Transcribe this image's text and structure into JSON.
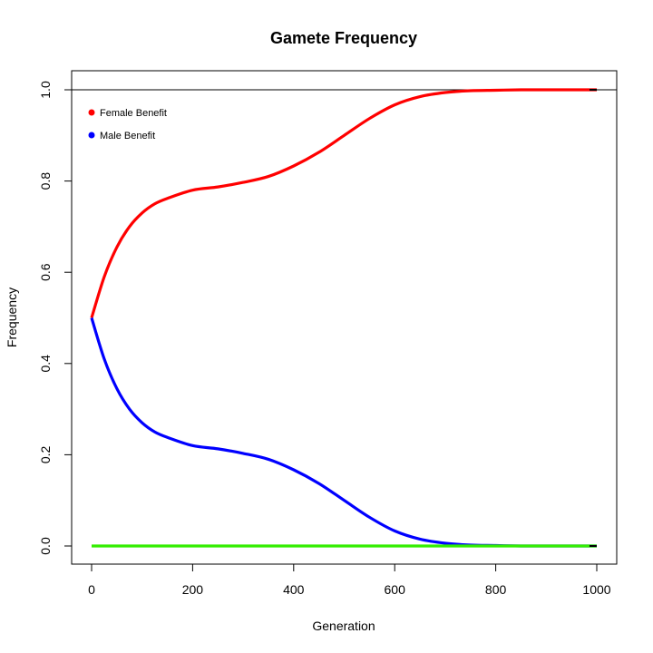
{
  "chart_data": {
    "type": "line",
    "title": "Gamete Frequency",
    "xlabel": "Generation",
    "ylabel": "Frequency",
    "xlim": [
      0,
      1000
    ],
    "ylim": [
      0,
      1
    ],
    "xticks": [
      0,
      200,
      400,
      600,
      800,
      1000
    ],
    "yticks": [
      0.0,
      0.2,
      0.4,
      0.6,
      0.8,
      1.0
    ],
    "ytick_labels": [
      "0.0",
      "0.2",
      "0.4",
      "0.6",
      "0.8",
      "1.0"
    ],
    "grid": false,
    "legend_position": "top-left",
    "reference_line": {
      "y": 1.0,
      "color": "#000000"
    },
    "series": [
      {
        "name": "Female Benefit",
        "color": "#ff0000",
        "x": [
          0,
          25,
          50,
          75,
          100,
          125,
          150,
          200,
          250,
          300,
          350,
          400,
          450,
          500,
          550,
          600,
          650,
          700,
          750,
          800,
          850,
          900,
          950,
          1000
        ],
        "y": [
          0.5,
          0.59,
          0.655,
          0.7,
          0.73,
          0.75,
          0.762,
          0.78,
          0.787,
          0.797,
          0.81,
          0.833,
          0.863,
          0.9,
          0.937,
          0.967,
          0.985,
          0.994,
          0.998,
          0.999,
          1.0,
          1.0,
          1.0,
          1.0
        ],
        "end_color": "#000000"
      },
      {
        "name": "Male Benefit",
        "color": "#0000ff",
        "x": [
          0,
          25,
          50,
          75,
          100,
          125,
          150,
          200,
          250,
          300,
          350,
          400,
          450,
          500,
          550,
          600,
          650,
          700,
          750,
          800,
          850,
          900,
          950,
          1000
        ],
        "y": [
          0.5,
          0.41,
          0.345,
          0.3,
          0.27,
          0.25,
          0.238,
          0.22,
          0.213,
          0.203,
          0.19,
          0.167,
          0.137,
          0.1,
          0.063,
          0.033,
          0.015,
          0.006,
          0.002,
          0.001,
          0.0,
          0.0,
          0.0,
          0.0
        ],
        "end_color": "#000000"
      },
      {
        "name": "",
        "color": "#33ee00",
        "x": [
          0,
          1000
        ],
        "y": [
          0.0,
          0.0
        ],
        "end_color": "#000000"
      }
    ]
  }
}
